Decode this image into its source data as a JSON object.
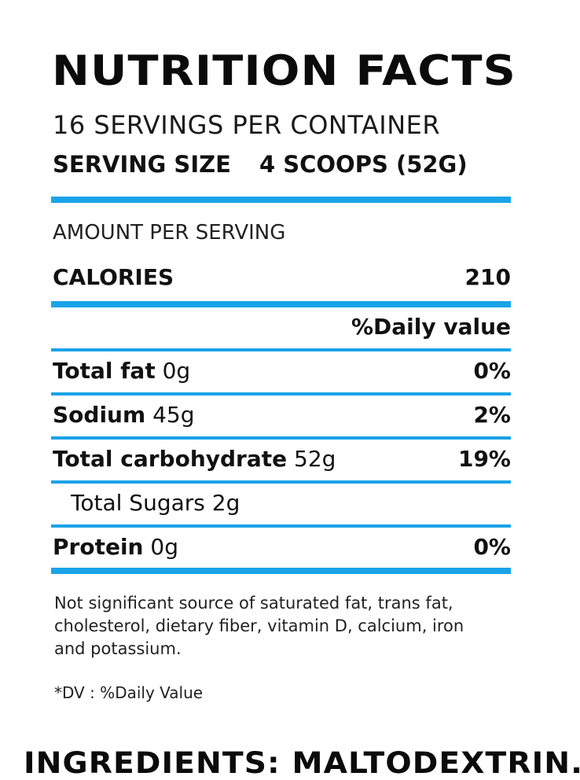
{
  "title": "NUTRITION FACTS",
  "servings_per_container": "16 SERVINGS PER CONTAINER",
  "serving_size": {
    "label": "SERVING SIZE",
    "value": "4 SCOOPS (52G)"
  },
  "amount_per_serving": "AMOUNT PER SERVING",
  "calories": {
    "label": "CALORIES",
    "value": "210"
  },
  "daily_value_header": "%Daily value",
  "nutrients": [
    {
      "name": "Total fat",
      "amount": "0g",
      "dv": "0%"
    },
    {
      "name": "Sodium",
      "amount": "45g",
      "dv": "2%"
    },
    {
      "name": "Total carbohydrate",
      "amount": "52g",
      "dv": "19%"
    },
    {
      "name": "Total Sugars",
      "amount": "2g",
      "dv": ""
    },
    {
      "name": "Protein",
      "amount": "0g",
      "dv": "0%"
    }
  ],
  "footnote": "Not significant source of saturated fat, trans fat, cholesterol, dietary fiber, vitamin D, calcium, iron and potassium.",
  "dv_note": "*DV : %Daily Value",
  "ingredients": "INGREDIENTS: MALTODEXTRIN.",
  "colors": {
    "accent_bar": "#1aa3e8",
    "text": "#111111"
  }
}
